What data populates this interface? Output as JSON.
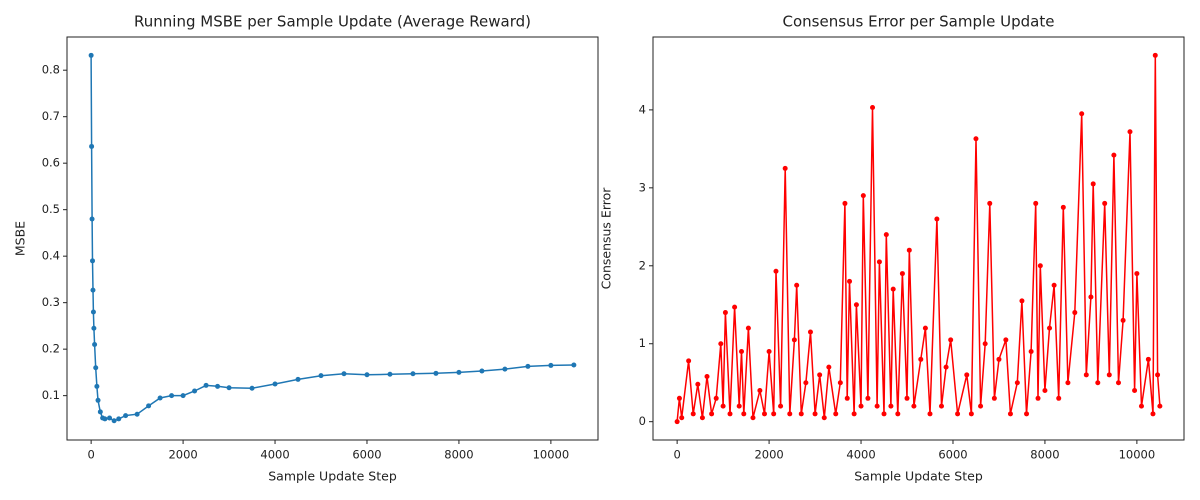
{
  "chart_data": [
    {
      "type": "line",
      "title": "Running MSBE per Sample Update (Average Reward)",
      "x_label": "Sample Update Step",
      "y_label": "MSBE",
      "xlim": [
        -525,
        11025
      ],
      "ylim": [
        0.0046,
        0.8714
      ],
      "xticks": [
        0,
        2000,
        4000,
        6000,
        8000,
        10000
      ],
      "yticks": [
        0.1,
        0.2,
        0.3,
        0.4,
        0.5,
        0.6,
        0.7,
        0.8
      ],
      "series": [
        {
          "color": "#1f77b4",
          "x": [
            0,
            10,
            20,
            30,
            40,
            50,
            60,
            75,
            100,
            125,
            150,
            200,
            250,
            300,
            400,
            500,
            600,
            750,
            1000,
            1250,
            1500,
            1750,
            2000,
            2250,
            2500,
            2750,
            3000,
            3500,
            4000,
            4500,
            5000,
            5500,
            6000,
            6500,
            7000,
            7500,
            8000,
            8500,
            9000,
            9500,
            10000,
            10500
          ],
          "values": [
            0.832,
            0.636,
            0.48,
            0.39,
            0.327,
            0.28,
            0.245,
            0.21,
            0.16,
            0.12,
            0.09,
            0.065,
            0.052,
            0.05,
            0.052,
            0.046,
            0.05,
            0.057,
            0.06,
            0.078,
            0.095,
            0.1,
            0.1,
            0.11,
            0.122,
            0.12,
            0.117,
            0.116,
            0.125,
            0.135,
            0.143,
            0.147,
            0.145,
            0.146,
            0.147,
            0.148,
            0.15,
            0.153,
            0.157,
            0.163,
            0.165,
            0.166
          ]
        }
      ]
    },
    {
      "type": "line",
      "title": "Consensus Error per Sample Update",
      "x_label": "Sample Update Step",
      "y_label": "Consensus Error",
      "xlim": [
        -525,
        11025
      ],
      "ylim": [
        -0.235,
        4.935
      ],
      "xticks": [
        0,
        2000,
        4000,
        6000,
        8000,
        10000
      ],
      "yticks": [
        0,
        1,
        2,
        3,
        4
      ],
      "series": [
        {
          "color": "#ff0000",
          "x": [
            0,
            50,
            100,
            250,
            350,
            450,
            550,
            650,
            750,
            850,
            950,
            1000,
            1050,
            1150,
            1250,
            1350,
            1400,
            1450,
            1550,
            1650,
            1800,
            1900,
            2000,
            2100,
            2150,
            2250,
            2350,
            2450,
            2550,
            2600,
            2700,
            2800,
            2900,
            3000,
            3100,
            3200,
            3300,
            3450,
            3550,
            3650,
            3700,
            3750,
            3850,
            3900,
            4000,
            4050,
            4150,
            4250,
            4350,
            4400,
            4500,
            4550,
            4650,
            4700,
            4800,
            4900,
            5000,
            5050,
            5150,
            5300,
            5400,
            5500,
            5650,
            5750,
            5850,
            5950,
            6100,
            6300,
            6400,
            6500,
            6600,
            6700,
            6800,
            6900,
            7000,
            7150,
            7250,
            7400,
            7500,
            7600,
            7700,
            7800,
            7850,
            7900,
            8000,
            8100,
            8200,
            8300,
            8400,
            8500,
            8650,
            8800,
            8900,
            9000,
            9050,
            9150,
            9300,
            9400,
            9500,
            9600,
            9700,
            9850,
            9950,
            10000,
            10100,
            10250,
            10350,
            10400,
            10450,
            10500
          ],
          "values": [
            0,
            0.3,
            0.05,
            0.78,
            0.1,
            0.48,
            0.05,
            0.58,
            0.1,
            0.3,
            1.0,
            0.2,
            1.4,
            0.1,
            1.47,
            0.2,
            0.9,
            0.1,
            1.2,
            0.05,
            0.4,
            0.1,
            0.9,
            0.1,
            1.93,
            0.2,
            3.25,
            0.1,
            1.05,
            1.75,
            0.1,
            0.5,
            1.15,
            0.1,
            0.6,
            0.05,
            0.7,
            0.1,
            0.5,
            2.8,
            0.3,
            1.8,
            0.1,
            1.5,
            0.2,
            2.9,
            0.3,
            4.03,
            0.2,
            2.05,
            0.1,
            2.4,
            0.2,
            1.7,
            0.1,
            1.9,
            0.3,
            2.2,
            0.2,
            0.8,
            1.2,
            0.1,
            2.6,
            0.2,
            0.7,
            1.05,
            0.1,
            0.6,
            0.1,
            3.63,
            0.2,
            1.0,
            2.8,
            0.3,
            0.8,
            1.05,
            0.1,
            0.5,
            1.55,
            0.1,
            0.9,
            2.8,
            0.3,
            2.0,
            0.4,
            1.2,
            1.75,
            0.3,
            2.75,
            0.5,
            1.4,
            3.95,
            0.6,
            1.6,
            3.05,
            0.5,
            2.8,
            0.6,
            3.42,
            0.5,
            1.3,
            3.72,
            0.4,
            1.9,
            0.2,
            0.8,
            0.1,
            4.7,
            0.6,
            0.2
          ]
        }
      ]
    }
  ]
}
